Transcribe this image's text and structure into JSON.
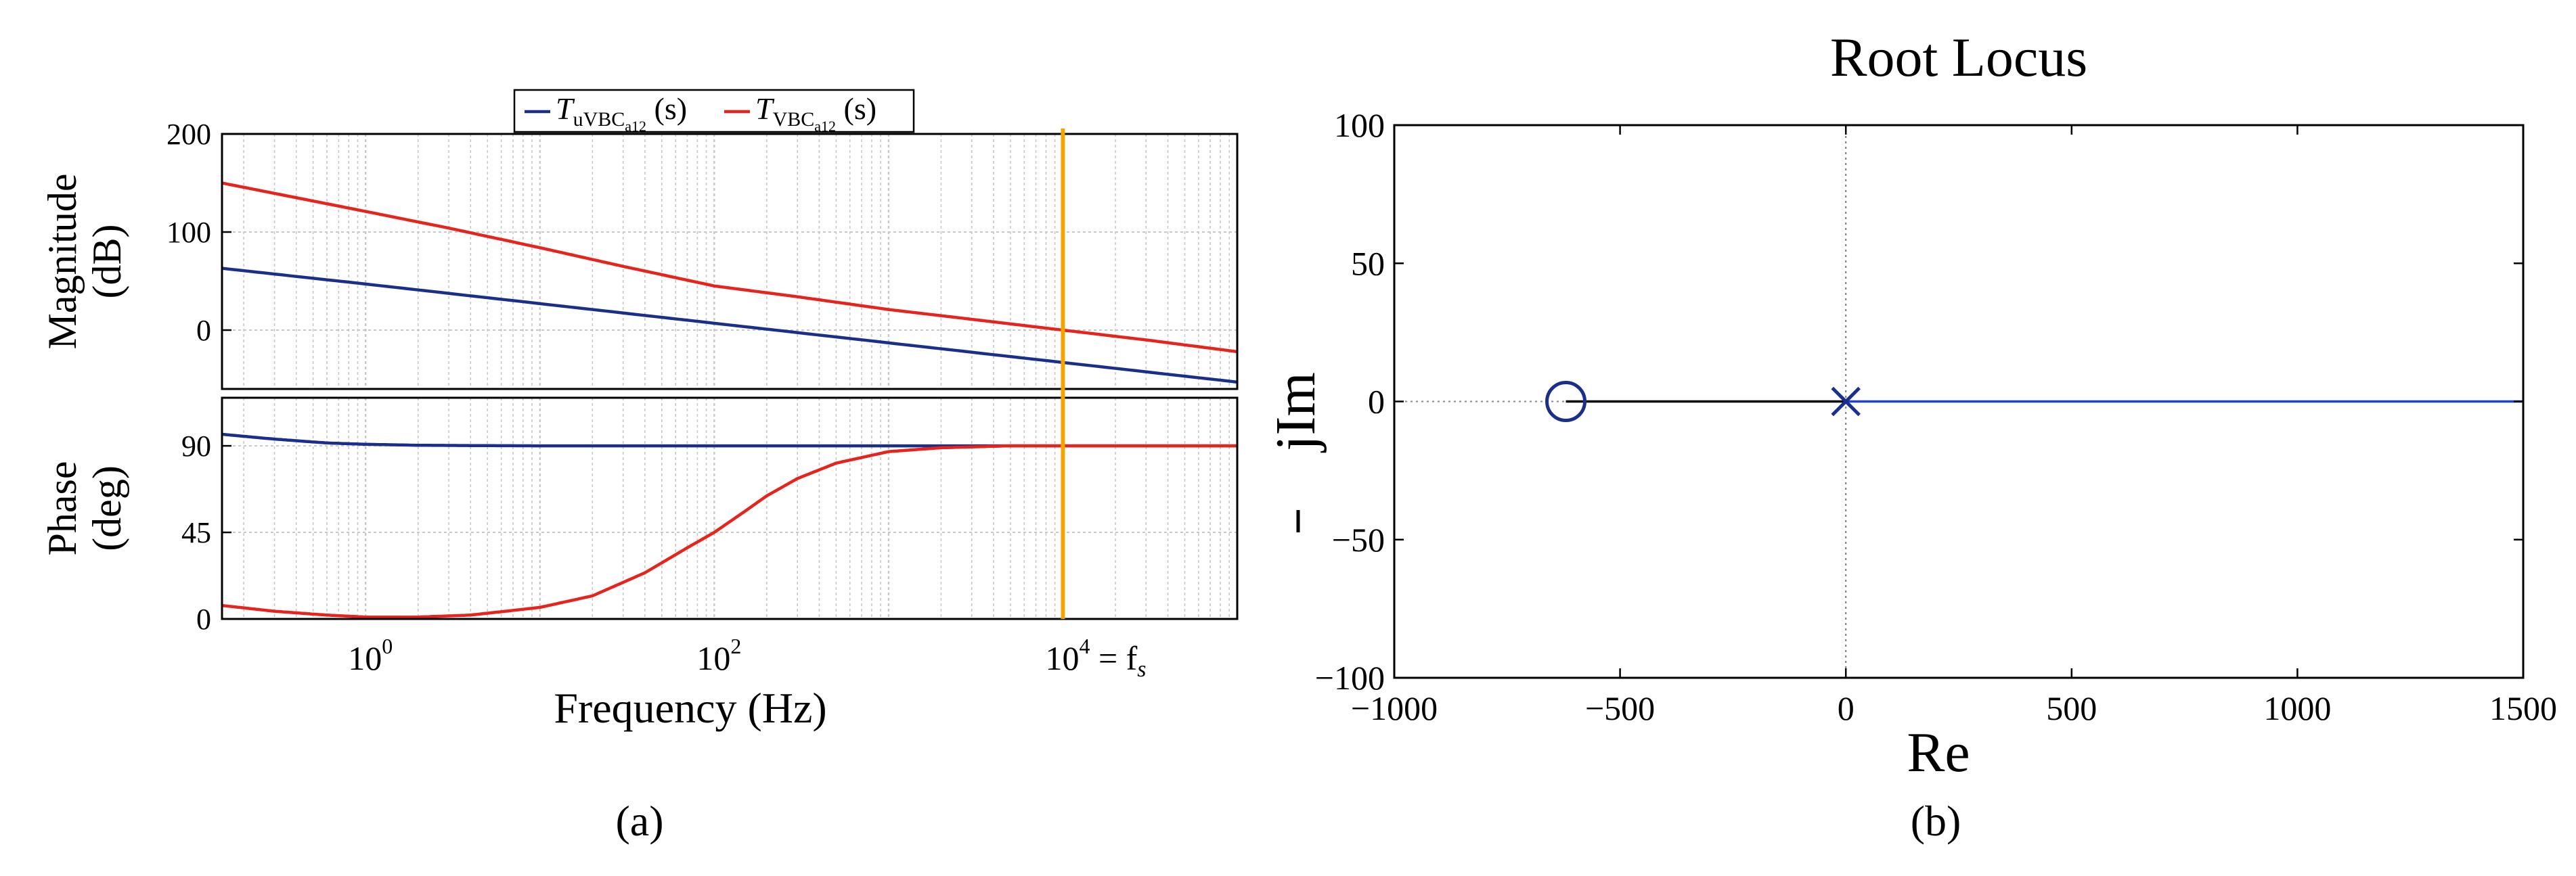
{
  "panel_labels": {
    "a": "(a)",
    "b": "(b)"
  },
  "colors": {
    "series_u": "#1a2f8c",
    "series_v": "#e8231c",
    "marker_fs": "#f5a300",
    "locus": "#1f3fd6",
    "locus_black": "#000000",
    "grid": "#c8c8c8"
  },
  "chart_data": [
    {
      "type": "line",
      "name": "bode",
      "xscale": "log",
      "xlabel": "Frequency (Hz)",
      "xlim": [
        0.15,
        100000
      ],
      "xticks": [
        {
          "value": 1,
          "base": "10",
          "exp": "0",
          "suffix": ""
        },
        {
          "value": 100,
          "base": "10",
          "exp": "2",
          "suffix": ""
        },
        {
          "value": 10000,
          "base": "10",
          "exp": "4",
          "suffix": " = f",
          "suffix_sub": "s"
        }
      ],
      "legend": {
        "position": "top",
        "entries": [
          {
            "series": "u",
            "main": "T",
            "sub": "uVBC",
            "subsub": "a12",
            "tail": "(s)"
          },
          {
            "series": "v",
            "main": "T",
            "sub": "VBC",
            "subsub": "a12",
            "tail": "(s)"
          }
        ]
      },
      "vline": {
        "x": 10000
      },
      "magnitude": {
        "ylabel_line1": "Magnitude",
        "ylabel_line2": "(dB)",
        "ylim": [
          -60,
          200
        ],
        "yticks": [
          0,
          100,
          200
        ],
        "series": [
          {
            "name": "u",
            "x": [
              0.15,
              1,
              10,
              100,
              1000,
              10000,
              100000
            ],
            "y": [
              63,
              47,
              27,
              7,
              -13,
              -33,
              -53
            ]
          },
          {
            "name": "v",
            "x": [
              0.15,
              1,
              3,
              10,
              30,
              100,
              300,
              1000,
              3000,
              10000,
              30000,
              100000
            ],
            "y": [
              150,
              121,
              104,
              84,
              65,
              45,
              34,
              21,
              11,
              0,
              -10,
              -22
            ]
          }
        ]
      },
      "phase": {
        "ylabel_line1": "Phase",
        "ylabel_line2": "(deg)",
        "ylim": [
          0,
          115
        ],
        "yticks": [
          0,
          45,
          90
        ],
        "series": [
          {
            "name": "u",
            "x": [
              0.15,
              0.3,
              0.6,
              1,
              2,
              5,
              10,
              100,
              10000,
              100000
            ],
            "y": [
              96,
              93.5,
              91.5,
              90.8,
              90.3,
              90.1,
              90,
              90,
              90,
              90
            ]
          },
          {
            "name": "v",
            "x": [
              0.15,
              0.3,
              0.6,
              1,
              2,
              4,
              10,
              20,
              40,
              70,
              100,
              150,
              200,
              300,
              500,
              1000,
              2000,
              5000,
              10000,
              100000
            ],
            "y": [
              7,
              4,
              2,
              1,
              1,
              2,
              6,
              12,
              24,
              37,
              45,
              56,
              64,
              73,
              81,
              87,
              89,
              90,
              90,
              90
            ]
          }
        ]
      }
    },
    {
      "type": "scatter",
      "name": "root_locus",
      "title": "Root Locus",
      "xlabel": "Re",
      "ylabel": "jIm",
      "xlim": [
        -1000,
        1500
      ],
      "ylim": [
        -100,
        100
      ],
      "xticks": [
        -1000,
        -500,
        0,
        500,
        1000,
        1500
      ],
      "yticks": [
        -100,
        -50,
        0,
        50,
        100
      ],
      "zero": {
        "re": -620,
        "im": 0
      },
      "pole": {
        "re": 0,
        "im": 0
      },
      "locus_segments": [
        {
          "from": [
            -620,
            0
          ],
          "to": [
            0,
            0
          ],
          "style": "solid-black"
        },
        {
          "from": [
            0,
            0
          ],
          "to": [
            1500,
            0
          ],
          "style": "solid-blue"
        },
        {
          "from": [
            -1000,
            0
          ],
          "to": [
            -620,
            0
          ],
          "style": "dotted"
        }
      ],
      "dotted_axis": {
        "re": 0
      }
    }
  ]
}
